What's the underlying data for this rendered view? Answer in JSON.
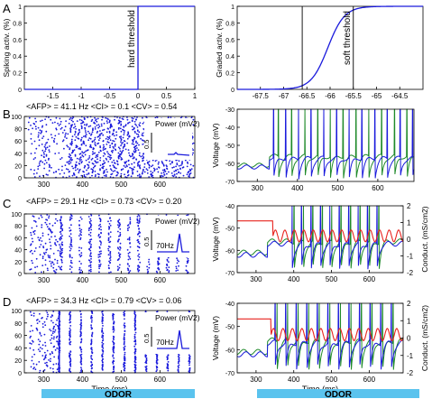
{
  "panel_letters": [
    "A",
    "B",
    "C",
    "D"
  ],
  "stim_label": "ODOR",
  "colors": {
    "blue": "#1a1adc",
    "green": "#1f8a2a",
    "red": "#e8231e",
    "odor_bar": "#5ac3ee"
  },
  "stats": {
    "B": "<AFP> = 41.1 Hz   <CI> = 0.1   <CV> = 0.54",
    "C": "<AFP> = 29.1 Hz   <CI> = 0.73   <CV> = 0.20",
    "D": "<AFP> = 34.3 Hz   <CI> = 0.79   <CV> = 0.06"
  },
  "chart_data": [
    {
      "id": "A-left",
      "type": "line",
      "ylabel": "Spiking activ. (%)",
      "annotation": "hard threshold",
      "xlim": [
        -2,
        1
      ],
      "ylim": [
        0,
        1
      ],
      "xticks": [
        "-1.5",
        "-1",
        "-0.5",
        "0",
        "0.5",
        "1"
      ],
      "yticks": [
        "0",
        "0.2",
        "0.4",
        "0.6",
        "0.8",
        "1"
      ],
      "series": [
        {
          "x": [
            -2,
            0,
            0,
            1
          ],
          "y": [
            0,
            0,
            1,
            1
          ]
        }
      ]
    },
    {
      "id": "A-right",
      "type": "line",
      "ylabel": "Graded activ. (%)",
      "annotation": "soft threshold",
      "xlim": [
        -68,
        -64
      ],
      "ylim": [
        0,
        1
      ],
      "xticks": [
        "-67.5",
        "-67",
        "-66.5",
        "-66",
        "-65.5",
        "-65",
        "-64.5"
      ],
      "yticks": [
        "0",
        "0.2",
        "0.4",
        "0.6",
        "0.8",
        "1"
      ],
      "threshold_lines": [
        -66.6,
        -65.5
      ],
      "sigmoid": {
        "center": -66.05,
        "width": 0.18
      }
    },
    {
      "id": "B-left",
      "type": "scatter",
      "xlabel": "",
      "xlim": [
        250,
        690
      ],
      "ylim": [
        0,
        100
      ],
      "xticks": [
        "300",
        "400",
        "500",
        "600"
      ],
      "yticks": [
        "0",
        "20",
        "40",
        "60",
        "80",
        "100"
      ],
      "inset": {
        "title": "Power (mV2)",
        "scale": "0.5",
        "peak_label": ""
      }
    },
    {
      "id": "B-right",
      "type": "line",
      "ylabel": "Voltage (mV)",
      "xlim": [
        250,
        690
      ],
      "ylim": [
        -70,
        -30
      ],
      "xticks": [
        "300",
        "400",
        "500",
        "600"
      ],
      "yticks": [
        "-70",
        "-60",
        "-50",
        "-40",
        "-30"
      ],
      "spikes_blue": [
        340,
        370,
        402,
        433,
        465,
        497,
        528,
        560,
        592,
        623,
        655,
        686
      ],
      "spikes_green": [
        352,
        385,
        418,
        450,
        481,
        513,
        545,
        577,
        609,
        641,
        672
      ]
    },
    {
      "id": "C-left",
      "type": "scatter",
      "xlim": [
        250,
        690
      ],
      "ylim": [
        0,
        100
      ],
      "xticks": [
        "300",
        "400",
        "500",
        "600"
      ],
      "yticks": [
        "0",
        "20",
        "40",
        "60",
        "80",
        "100"
      ],
      "inset": {
        "title": "Power (mV2)",
        "scale": "0.5",
        "peak_label": "70Hz"
      }
    },
    {
      "id": "C-right",
      "type": "line",
      "ylabel": "Voltage (mV)",
      "y2label": "Conduct. (mS/cm2)",
      "xlim": [
        250,
        690
      ],
      "ylim": [
        -70,
        -40
      ],
      "y2lim": [
        -2,
        2
      ],
      "xticks": [
        "300",
        "400",
        "500",
        "600"
      ],
      "yticks": [
        "-70",
        "-60",
        "-50",
        "-40"
      ],
      "y2ticks": [
        "-2",
        "-1",
        "0",
        "1",
        "2"
      ],
      "spikes_blue": [
        395,
        420,
        445,
        470,
        495,
        520,
        545,
        570,
        595,
        620
      ],
      "spikes_green": [
        400,
        425,
        450,
        475,
        500,
        525,
        550,
        575,
        600,
        625
      ]
    },
    {
      "id": "D-left",
      "type": "scatter",
      "xlabel": "Time (ms)",
      "xlim": [
        250,
        690
      ],
      "ylim": [
        0,
        100
      ],
      "xticks": [
        "300",
        "400",
        "500",
        "600"
      ],
      "yticks": [
        "0",
        "20",
        "40",
        "60",
        "80",
        "100"
      ],
      "inset": {
        "title": "Power (mV2)",
        "scale": "0.5",
        "peak_label": "70Hz"
      }
    },
    {
      "id": "D-right",
      "type": "line",
      "xlabel": "Time (ms)",
      "ylabel": "Voltage (mV)",
      "y2label": "Conduct. (mS/cm2)",
      "xlim": [
        250,
        690
      ],
      "ylim": [
        -70,
        -40
      ],
      "y2lim": [
        -2,
        2
      ],
      "xticks": [
        "300",
        "400",
        "500",
        "600"
      ],
      "yticks": [
        "-70",
        "-60",
        "-50",
        "-40"
      ],
      "y2ticks": [
        "-2",
        "-1",
        "0",
        "1",
        "2"
      ],
      "spikes_blue": [
        350,
        378,
        406,
        434,
        462,
        490,
        518,
        546,
        574,
        602,
        630,
        658
      ],
      "spikes_green": [
        355,
        383,
        411,
        439,
        467,
        495,
        523,
        551,
        579,
        607,
        635,
        663
      ]
    }
  ]
}
